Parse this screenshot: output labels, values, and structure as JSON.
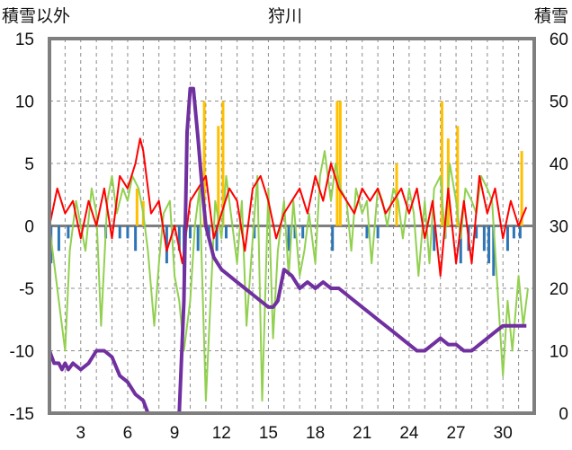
{
  "chart_data": {
    "type": "line",
    "title": "狩川",
    "left_axis": {
      "label": "積雪以外",
      "range": [
        -15,
        15
      ],
      "ticks": [
        -15,
        -10,
        -5,
        0,
        5,
        10,
        15
      ]
    },
    "right_axis": {
      "label": "積雪",
      "range": [
        0,
        60
      ],
      "ticks": [
        0,
        10,
        20,
        30,
        40,
        50,
        60
      ]
    },
    "x_axis": {
      "range": [
        1,
        32
      ],
      "ticks": [
        3,
        6,
        9,
        12,
        15,
        18,
        21,
        24,
        27,
        30
      ],
      "grid": "dashed"
    },
    "grid": true,
    "colors": {
      "temperature": "#ff0000",
      "humidity_like": "#92d050",
      "precipitation": "#ffc000",
      "negative_bars": "#2e75b6",
      "snow_depth": "#7030a0"
    },
    "series": [
      {
        "key": "red",
        "axis": "left",
        "kind": "line",
        "x": [
          1.0,
          1.5,
          2.0,
          2.5,
          3.0,
          3.5,
          4.0,
          4.5,
          5.0,
          5.5,
          6.0,
          6.5,
          6.8,
          7.0,
          7.5,
          8.0,
          8.5,
          9.0,
          9.5,
          10.0,
          10.5,
          11.0,
          11.5,
          12.0,
          12.5,
          13.0,
          13.5,
          14.0,
          14.5,
          15.0,
          15.5,
          16.0,
          16.5,
          17.0,
          17.5,
          18.0,
          18.5,
          19.0,
          19.5,
          20.0,
          20.5,
          21.0,
          21.5,
          22.0,
          22.5,
          23.0,
          23.5,
          24.0,
          24.5,
          25.0,
          25.5,
          26.0,
          26.5,
          27.0,
          27.5,
          28.0,
          28.5,
          29.0,
          29.5,
          30.0,
          30.5,
          31.0,
          31.5
        ],
        "y": [
          0,
          3,
          1,
          2,
          -1,
          2,
          0,
          3,
          -1,
          4,
          3,
          5,
          7,
          6,
          1,
          2,
          -2,
          0,
          -3,
          2,
          3,
          4,
          -1,
          1,
          3,
          2,
          -2,
          3,
          4,
          2,
          -1,
          1,
          2,
          3,
          1,
          4,
          2,
          5,
          3,
          2,
          1,
          3,
          2,
          3,
          1,
          2,
          3,
          1,
          3,
          -1,
          2,
          -4,
          3,
          -3,
          2,
          -3,
          4,
          1,
          3,
          -1,
          2,
          0,
          1.5
        ]
      },
      {
        "key": "green",
        "axis": "left",
        "kind": "line",
        "x": [
          1.0,
          1.3,
          1.6,
          2.0,
          2.3,
          2.7,
          3.0,
          3.3,
          3.7,
          4.0,
          4.3,
          4.7,
          5.0,
          5.3,
          5.7,
          6.0,
          6.3,
          6.7,
          7.0,
          7.3,
          7.7,
          8.0,
          8.3,
          8.7,
          9.0,
          9.3,
          9.6,
          10.0,
          10.3,
          10.6,
          11.0,
          11.3,
          11.6,
          12.0,
          12.3,
          12.6,
          13.0,
          13.3,
          13.6,
          14.0,
          14.3,
          14.6,
          15.0,
          15.3,
          15.6,
          16.0,
          16.3,
          16.6,
          17.0,
          17.3,
          17.6,
          18.0,
          18.3,
          18.6,
          19.0,
          19.3,
          19.6,
          20.0,
          20.3,
          20.6,
          21.0,
          21.3,
          21.6,
          22.0,
          22.3,
          22.6,
          23.0,
          23.3,
          23.6,
          24.0,
          24.3,
          24.6,
          25.0,
          25.3,
          25.6,
          26.0,
          26.3,
          26.6,
          27.0,
          27.3,
          27.6,
          28.0,
          28.3,
          28.6,
          29.0,
          29.3,
          29.6,
          30.0,
          30.3,
          30.6,
          31.0,
          31.3,
          31.6
        ],
        "y": [
          0,
          -3,
          -6,
          -10,
          -2,
          2,
          0,
          -2,
          3,
          1,
          -8,
          2,
          4,
          1,
          3,
          2,
          4,
          3,
          1,
          -2,
          -8,
          -3,
          1,
          2,
          -4,
          -6,
          -10,
          -6,
          0,
          3,
          -14,
          -6,
          2,
          -1,
          4,
          1,
          -3,
          2,
          -8,
          -1,
          4,
          -14,
          3,
          -9,
          -2,
          2,
          -4,
          2,
          -4,
          -2,
          1,
          -3,
          4,
          6,
          2,
          5,
          3,
          2,
          -2,
          3,
          1,
          2,
          -3,
          3,
          2,
          0,
          3,
          2,
          -1,
          3,
          1,
          -4,
          2,
          -3,
          3,
          4,
          -1,
          5,
          2,
          -1,
          3,
          2,
          1,
          4,
          3,
          2,
          -4,
          -12,
          -6,
          -10,
          -4,
          -8,
          -5
        ]
      },
      {
        "key": "snow",
        "axis": "right",
        "kind": "line",
        "x": [
          1.0,
          1.3,
          1.6,
          1.8,
          2.0,
          2.2,
          2.5,
          3.0,
          3.5,
          4.0,
          4.5,
          5.0,
          5.5,
          6.0,
          6.5,
          7.0,
          7.3,
          7.6,
          8.0,
          8.5,
          8.8,
          9.0,
          9.3,
          9.6,
          9.8,
          10.0,
          10.2,
          10.5,
          10.8,
          11.0,
          11.5,
          12.0,
          12.5,
          13.0,
          13.5,
          14.0,
          14.5,
          15.0,
          15.3,
          15.6,
          16.0,
          16.5,
          17.0,
          17.5,
          18.0,
          18.5,
          19.0,
          19.5,
          20.0,
          20.5,
          21.0,
          21.5,
          22.0,
          22.5,
          23.0,
          23.5,
          24.0,
          24.5,
          25.0,
          25.5,
          26.0,
          26.5,
          27.0,
          27.5,
          28.0,
          28.5,
          29.0,
          29.5,
          30.0,
          30.5,
          31.0,
          31.5
        ],
        "y": [
          10,
          8,
          8,
          7,
          8,
          7,
          8,
          7,
          8,
          10,
          10,
          9,
          6,
          5,
          3,
          2,
          0,
          0,
          0,
          0,
          0,
          0,
          0,
          18,
          45,
          52,
          52,
          44,
          35,
          30,
          25,
          23,
          22,
          21,
          20,
          19,
          18,
          17,
          17,
          18,
          23,
          22,
          20,
          21,
          20,
          21,
          20,
          20,
          19,
          18,
          17,
          16,
          15,
          14,
          13,
          12,
          11,
          10,
          10,
          11,
          12,
          11,
          11,
          10,
          10,
          11,
          12,
          13,
          14,
          14,
          14,
          14
        ]
      },
      {
        "key": "yellow",
        "axis": "left",
        "kind": "bars",
        "x": [
          6.6,
          7.0,
          10.9,
          11.8,
          12.1,
          19.4,
          19.6,
          23.2,
          26.1,
          26.5,
          27.1,
          31.2
        ],
        "y": [
          3,
          2,
          10,
          8,
          10,
          10,
          10,
          5,
          10,
          7,
          8,
          6
        ]
      },
      {
        "key": "blue",
        "axis": "left",
        "kind": "bars",
        "x": [
          1.1,
          1.6,
          2.2,
          4.6,
          5.5,
          6.0,
          6.5,
          8.5,
          9.3,
          9.6,
          10.0,
          10.5,
          11.2,
          11.7,
          12.3,
          14.1,
          16.3,
          16.7,
          17.2,
          19.1,
          21.3,
          22.0,
          25.6,
          26.3,
          27.3,
          27.8,
          28.3,
          28.8,
          29.1,
          29.4,
          30.3,
          30.7,
          31.1
        ],
        "y": [
          -3,
          -2,
          -1,
          -1,
          -1,
          -1,
          -2,
          -3,
          -2,
          -4,
          -1,
          -2,
          -1,
          -2,
          -1,
          -1,
          -2,
          -1,
          -1,
          -2,
          -1,
          -1,
          -2,
          -1,
          -3,
          -2,
          -1,
          -2,
          -3,
          -4,
          -2,
          -1,
          -1
        ]
      }
    ]
  }
}
